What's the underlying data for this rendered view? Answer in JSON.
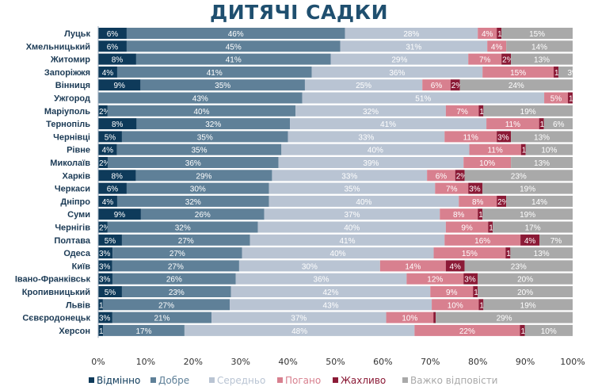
{
  "chart_data": {
    "type": "bar",
    "orientation": "horizontal",
    "stacked": true,
    "normalized": true,
    "title": "ДИТЯЧІ САДКИ",
    "xlim": [
      0,
      100
    ],
    "x_ticks": [
      "0%",
      "10%",
      "20%",
      "30%",
      "40%",
      "50%",
      "60%",
      "70%",
      "80%",
      "90%",
      "100%"
    ],
    "grid": false,
    "legend_position": "bottom",
    "categories": [
      "Луцьк",
      "Хмельницький",
      "Житомир",
      "Запоріжжя",
      "Вінниця",
      "Ужгород",
      "Маріуполь",
      "Тернопіль",
      "Чернівці",
      "Рівне",
      "Миколаїв",
      "Харків",
      "Черкаси",
      "Дніпро",
      "Суми",
      "Чернігів",
      "Полтава",
      "Одеса",
      "Київ",
      "Івано-Франківськ",
      "Кропивницький",
      "Львів",
      "Сєвєродонецьк",
      "Херсон"
    ],
    "series": [
      {
        "name": "Відмінно",
        "color": "#0e3a5a",
        "values": [
          6,
          6,
          8,
          4,
          9,
          0,
          2,
          8,
          5,
          4,
          2,
          8,
          6,
          4,
          9,
          2,
          5,
          3,
          3,
          3,
          5,
          1,
          3,
          1
        ]
      },
      {
        "name": "Добре",
        "color": "#5f8098",
        "values": [
          46,
          45,
          41,
          41,
          35,
          43,
          40,
          32,
          35,
          35,
          36,
          29,
          30,
          32,
          26,
          32,
          27,
          27,
          27,
          26,
          23,
          27,
          21,
          17
        ]
      },
      {
        "name": "Середньо",
        "color": "#b9c4d3",
        "values": [
          28,
          31,
          29,
          36,
          25,
          51,
          32,
          41,
          33,
          40,
          39,
          33,
          35,
          40,
          37,
          40,
          41,
          40,
          30,
          36,
          42,
          43,
          37,
          48
        ]
      },
      {
        "name": "Погано",
        "color": "#d8808f",
        "values": [
          4,
          4,
          7,
          15,
          6,
          5,
          7,
          11,
          11,
          11,
          10,
          6,
          7,
          8,
          8,
          9,
          16,
          15,
          14,
          12,
          9,
          10,
          10,
          22
        ]
      },
      {
        "name": "Жахливо",
        "color": "#8b1a36",
        "values": [
          1,
          0,
          2,
          1,
          2,
          1,
          1,
          1,
          3,
          1,
          0,
          2,
          3,
          2,
          1,
          1,
          4,
          1,
          4,
          3,
          1,
          1,
          0.5,
          1
        ]
      },
      {
        "name": "Важко відповісти",
        "color": "#a9a9a9",
        "values": [
          15,
          14,
          13,
          3,
          24,
          0,
          19,
          6,
          13,
          10,
          13,
          23,
          19,
          14,
          19,
          17,
          7,
          13,
          23,
          20,
          20,
          19,
          29,
          10
        ]
      }
    ]
  }
}
